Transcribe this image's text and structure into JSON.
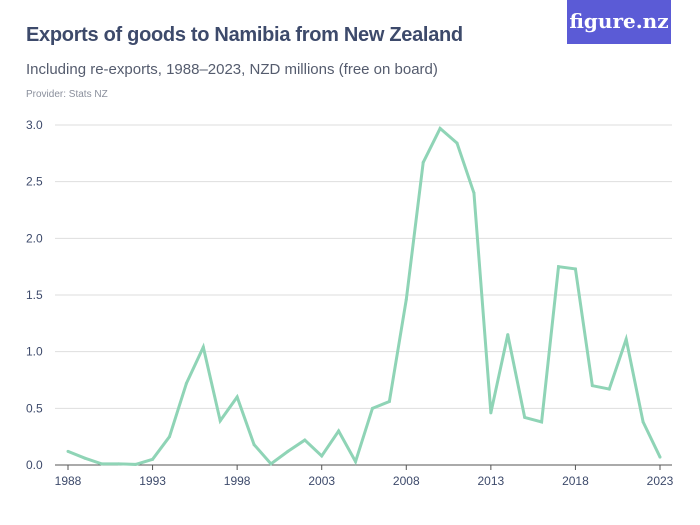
{
  "header": {
    "title": "Exports of goods to Namibia from New Zealand",
    "subtitle": "Including re-exports, 1988–2023, NZD millions (free on board)",
    "provider": "Provider: Stats NZ",
    "logo": "figure.nz"
  },
  "colors": {
    "line": "#8fd4b6",
    "logo_bg": "#5b5bd6",
    "text": "#3d4a6b"
  },
  "chart_data": {
    "type": "line",
    "title": "Exports of goods to Namibia from New Zealand",
    "xlabel": "",
    "ylabel": "",
    "ylim": [
      0,
      3
    ],
    "xlim": [
      1988,
      2023
    ],
    "grid": true,
    "yticks": [
      "0.0",
      "0.5",
      "1.0",
      "1.5",
      "2.0",
      "2.5",
      "3.0"
    ],
    "xticks": [
      "1988",
      "1993",
      "1998",
      "2003",
      "2008",
      "2013",
      "2018",
      "2023"
    ],
    "x": [
      1988,
      1989,
      1990,
      1991,
      1992,
      1993,
      1994,
      1995,
      1996,
      1997,
      1998,
      1999,
      2000,
      2001,
      2002,
      2003,
      2004,
      2005,
      2006,
      2007,
      2008,
      2009,
      2010,
      2011,
      2012,
      2013,
      2014,
      2015,
      2016,
      2017,
      2018,
      2019,
      2020,
      2021,
      2022,
      2023
    ],
    "values": [
      0.12,
      0.06,
      0.01,
      0.01,
      0.005,
      0.05,
      0.25,
      0.72,
      1.04,
      0.39,
      0.6,
      0.18,
      0.01,
      0.12,
      0.22,
      0.08,
      0.3,
      0.03,
      0.5,
      0.56,
      1.46,
      2.67,
      2.97,
      2.84,
      2.4,
      0.46,
      1.15,
      0.42,
      0.38,
      1.75,
      1.73,
      0.7,
      0.67,
      1.11,
      0.38,
      0.07
    ]
  }
}
